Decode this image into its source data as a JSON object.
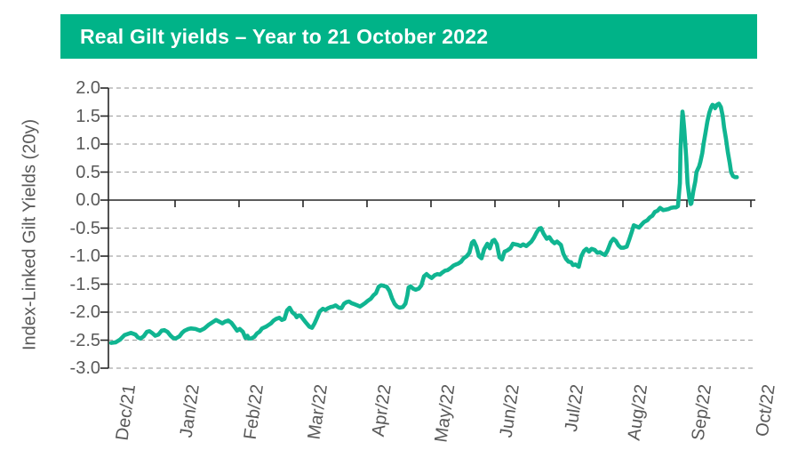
{
  "header": {
    "title": "Real Gilt yields – Year to 21 October 2022",
    "bg_color": "#00B388",
    "text_color": "#FFFFFF"
  },
  "chart_data": {
    "type": "line",
    "title": "Real Gilt yields – Year to 21 October 2022",
    "xlabel": "",
    "ylabel": "Index-Linked Gilt Yields (20y)",
    "legend_position": "none",
    "grid": "horizontal-dashed",
    "ylim": [
      -3.0,
      2.0
    ],
    "y_ticks": [
      2.0,
      1.5,
      1.0,
      0.5,
      0.0,
      -0.5,
      -1.0,
      -1.5,
      -2.0,
      -2.5,
      -3.0
    ],
    "y_tick_labels": [
      "2.0",
      "1.5",
      "1.0",
      "0.5",
      "0.0",
      "-0.5",
      "-1.0",
      "-1.5",
      "-2.0",
      "-2.5",
      "-3.0"
    ],
    "x_tick_labels": [
      "Dec/21",
      "Jan/22",
      "Feb/22",
      "Mar/22",
      "Apr/22",
      "May/22",
      "Jun/22",
      "Jul/22",
      "Aug/22",
      "Sep/22",
      "Oct/22"
    ],
    "x_tick_months": [
      0,
      1,
      2,
      3,
      4,
      5,
      6,
      7,
      8,
      9,
      10
    ],
    "colors": {
      "line": "#10B591",
      "grid": "#A6A6A6",
      "axis": "#262626",
      "tick_label": "#595959"
    },
    "series": [
      {
        "name": "Index-Linked Gilt Yields (20y)",
        "x_unit": "months since Dec/21",
        "y_unit": "percent yield",
        "points": [
          [
            0.0,
            -2.55
          ],
          [
            0.07,
            -2.54
          ],
          [
            0.14,
            -2.49
          ],
          [
            0.21,
            -2.41
          ],
          [
            0.31,
            -2.37
          ],
          [
            0.38,
            -2.4
          ],
          [
            0.42,
            -2.45
          ],
          [
            0.46,
            -2.47
          ],
          [
            0.51,
            -2.43
          ],
          [
            0.56,
            -2.35
          ],
          [
            0.6,
            -2.34
          ],
          [
            0.65,
            -2.38
          ],
          [
            0.69,
            -2.42
          ],
          [
            0.74,
            -2.4
          ],
          [
            0.79,
            -2.33
          ],
          [
            0.83,
            -2.32
          ],
          [
            0.88,
            -2.35
          ],
          [
            0.93,
            -2.42
          ],
          [
            0.97,
            -2.46
          ],
          [
            1.01,
            -2.47
          ],
          [
            1.07,
            -2.43
          ],
          [
            1.11,
            -2.37
          ],
          [
            1.15,
            -2.33
          ],
          [
            1.21,
            -2.3
          ],
          [
            1.25,
            -2.29
          ],
          [
            1.32,
            -2.3
          ],
          [
            1.39,
            -2.33
          ],
          [
            1.46,
            -2.29
          ],
          [
            1.53,
            -2.22
          ],
          [
            1.6,
            -2.17
          ],
          [
            1.64,
            -2.14
          ],
          [
            1.69,
            -2.17
          ],
          [
            1.74,
            -2.2
          ],
          [
            1.78,
            -2.17
          ],
          [
            1.83,
            -2.15
          ],
          [
            1.88,
            -2.19
          ],
          [
            1.92,
            -2.25
          ],
          [
            1.97,
            -2.33
          ],
          [
            2.01,
            -2.3
          ],
          [
            2.06,
            -2.35
          ],
          [
            2.1,
            -2.46
          ],
          [
            2.13,
            -2.42
          ],
          [
            2.15,
            -2.47
          ],
          [
            2.19,
            -2.47
          ],
          [
            2.24,
            -2.44
          ],
          [
            2.28,
            -2.38
          ],
          [
            2.32,
            -2.35
          ],
          [
            2.36,
            -2.29
          ],
          [
            2.42,
            -2.26
          ],
          [
            2.46,
            -2.23
          ],
          [
            2.5,
            -2.2
          ],
          [
            2.54,
            -2.15
          ],
          [
            2.58,
            -2.12
          ],
          [
            2.63,
            -2.1
          ],
          [
            2.67,
            -2.14
          ],
          [
            2.71,
            -2.12
          ],
          [
            2.75,
            -1.97
          ],
          [
            2.79,
            -1.92
          ],
          [
            2.83,
            -2.0
          ],
          [
            2.88,
            -2.05
          ],
          [
            2.9,
            -2.09
          ],
          [
            2.93,
            -2.06
          ],
          [
            2.96,
            -2.06
          ],
          [
            3.0,
            -2.12
          ],
          [
            3.04,
            -2.18
          ],
          [
            3.1,
            -2.26
          ],
          [
            3.14,
            -2.28
          ],
          [
            3.18,
            -2.2
          ],
          [
            3.22,
            -2.1
          ],
          [
            3.26,
            -1.99
          ],
          [
            3.31,
            -1.94
          ],
          [
            3.35,
            -1.96
          ],
          [
            3.39,
            -1.93
          ],
          [
            3.43,
            -1.91
          ],
          [
            3.47,
            -1.9
          ],
          [
            3.51,
            -1.88
          ],
          [
            3.56,
            -1.92
          ],
          [
            3.6,
            -1.93
          ],
          [
            3.64,
            -1.85
          ],
          [
            3.68,
            -1.82
          ],
          [
            3.72,
            -1.81
          ],
          [
            3.76,
            -1.84
          ],
          [
            3.81,
            -1.86
          ],
          [
            3.85,
            -1.88
          ],
          [
            3.89,
            -1.9
          ],
          [
            3.93,
            -1.87
          ],
          [
            3.97,
            -1.84
          ],
          [
            4.01,
            -1.8
          ],
          [
            4.06,
            -1.76
          ],
          [
            4.1,
            -1.7
          ],
          [
            4.14,
            -1.66
          ],
          [
            4.18,
            -1.55
          ],
          [
            4.22,
            -1.52
          ],
          [
            4.26,
            -1.53
          ],
          [
            4.31,
            -1.55
          ],
          [
            4.35,
            -1.62
          ],
          [
            4.39,
            -1.75
          ],
          [
            4.43,
            -1.85
          ],
          [
            4.47,
            -1.9
          ],
          [
            4.51,
            -1.92
          ],
          [
            4.56,
            -1.91
          ],
          [
            4.6,
            -1.85
          ],
          [
            4.63,
            -1.7
          ],
          [
            4.65,
            -1.56
          ],
          [
            4.68,
            -1.54
          ],
          [
            4.72,
            -1.58
          ],
          [
            4.76,
            -1.6
          ],
          [
            4.81,
            -1.58
          ],
          [
            4.85,
            -1.52
          ],
          [
            4.89,
            -1.36
          ],
          [
            4.93,
            -1.32
          ],
          [
            4.97,
            -1.36
          ],
          [
            5.01,
            -1.39
          ],
          [
            5.06,
            -1.34
          ],
          [
            5.1,
            -1.32
          ],
          [
            5.14,
            -1.33
          ],
          [
            5.18,
            -1.29
          ],
          [
            5.22,
            -1.26
          ],
          [
            5.26,
            -1.25
          ],
          [
            5.31,
            -1.21
          ],
          [
            5.35,
            -1.17
          ],
          [
            5.39,
            -1.15
          ],
          [
            5.43,
            -1.13
          ],
          [
            5.47,
            -1.1
          ],
          [
            5.51,
            -1.04
          ],
          [
            5.56,
            -1.0
          ],
          [
            5.6,
            -0.94
          ],
          [
            5.64,
            -0.76
          ],
          [
            5.67,
            -0.73
          ],
          [
            5.71,
            -0.83
          ],
          [
            5.75,
            -1.0
          ],
          [
            5.79,
            -1.04
          ],
          [
            5.83,
            -0.88
          ],
          [
            5.88,
            -0.78
          ],
          [
            5.92,
            -0.86
          ],
          [
            5.96,
            -0.73
          ],
          [
            5.99,
            -0.71
          ],
          [
            6.03,
            -0.79
          ],
          [
            6.07,
            -1.02
          ],
          [
            6.11,
            -1.06
          ],
          [
            6.15,
            -0.92
          ],
          [
            6.19,
            -0.9
          ],
          [
            6.24,
            -0.86
          ],
          [
            6.28,
            -0.78
          ],
          [
            6.32,
            -0.79
          ],
          [
            6.36,
            -0.8
          ],
          [
            6.4,
            -0.82
          ],
          [
            6.44,
            -0.79
          ],
          [
            6.49,
            -0.82
          ],
          [
            6.53,
            -0.78
          ],
          [
            6.57,
            -0.74
          ],
          [
            6.61,
            -0.67
          ],
          [
            6.65,
            -0.58
          ],
          [
            6.69,
            -0.51
          ],
          [
            6.72,
            -0.5
          ],
          [
            6.76,
            -0.6
          ],
          [
            6.81,
            -0.69
          ],
          [
            6.85,
            -0.66
          ],
          [
            6.89,
            -0.73
          ],
          [
            6.93,
            -0.77
          ],
          [
            6.97,
            -0.74
          ],
          [
            7.03,
            -0.8
          ],
          [
            7.07,
            -0.96
          ],
          [
            7.11,
            -1.05
          ],
          [
            7.15,
            -1.1
          ],
          [
            7.19,
            -1.11
          ],
          [
            7.22,
            -1.16
          ],
          [
            7.26,
            -1.15
          ],
          [
            7.31,
            -1.19
          ],
          [
            7.35,
            -1.0
          ],
          [
            7.39,
            -0.91
          ],
          [
            7.43,
            -0.87
          ],
          [
            7.47,
            -0.92
          ],
          [
            7.51,
            -0.87
          ],
          [
            7.56,
            -0.89
          ],
          [
            7.6,
            -0.94
          ],
          [
            7.64,
            -0.93
          ],
          [
            7.68,
            -0.96
          ],
          [
            7.72,
            -0.98
          ],
          [
            7.76,
            -0.9
          ],
          [
            7.81,
            -0.75
          ],
          [
            7.85,
            -0.69
          ],
          [
            7.89,
            -0.73
          ],
          [
            7.93,
            -0.81
          ],
          [
            7.97,
            -0.85
          ],
          [
            8.01,
            -0.85
          ],
          [
            8.06,
            -0.83
          ],
          [
            8.1,
            -0.7
          ],
          [
            8.14,
            -0.56
          ],
          [
            8.17,
            -0.45
          ],
          [
            8.21,
            -0.47
          ],
          [
            8.25,
            -0.49
          ],
          [
            8.29,
            -0.44
          ],
          [
            8.33,
            -0.39
          ],
          [
            8.38,
            -0.36
          ],
          [
            8.42,
            -0.31
          ],
          [
            8.46,
            -0.28
          ],
          [
            8.5,
            -0.21
          ],
          [
            8.54,
            -0.19
          ],
          [
            8.58,
            -0.14
          ],
          [
            8.63,
            -0.18
          ],
          [
            8.67,
            -0.17
          ],
          [
            8.71,
            -0.16
          ],
          [
            8.75,
            -0.14
          ],
          [
            8.79,
            -0.13
          ],
          [
            8.83,
            -0.13
          ],
          [
            8.86,
            -0.11
          ],
          [
            8.89,
            0.3
          ],
          [
            8.9,
            0.9
          ],
          [
            8.92,
            1.35
          ],
          [
            8.93,
            1.58
          ],
          [
            8.94,
            1.5
          ],
          [
            8.96,
            1.25
          ],
          [
            8.99,
            0.74
          ],
          [
            9.01,
            0.3
          ],
          [
            9.04,
            0.02
          ],
          [
            9.06,
            -0.07
          ],
          [
            9.07,
            -0.06
          ],
          [
            9.1,
            0.16
          ],
          [
            9.13,
            0.33
          ],
          [
            9.15,
            0.5
          ],
          [
            9.17,
            0.55
          ],
          [
            9.19,
            0.6
          ],
          [
            9.21,
            0.68
          ],
          [
            9.24,
            0.84
          ],
          [
            9.26,
            1.0
          ],
          [
            9.29,
            1.2
          ],
          [
            9.32,
            1.4
          ],
          [
            9.35,
            1.56
          ],
          [
            9.38,
            1.66
          ],
          [
            9.4,
            1.7
          ],
          [
            9.43,
            1.68
          ],
          [
            9.44,
            1.64
          ],
          [
            9.47,
            1.7
          ],
          [
            9.5,
            1.72
          ],
          [
            9.53,
            1.66
          ],
          [
            9.56,
            1.5
          ],
          [
            9.58,
            1.3
          ],
          [
            9.61,
            1.1
          ],
          [
            9.64,
            0.85
          ],
          [
            9.67,
            0.66
          ],
          [
            9.69,
            0.5
          ],
          [
            9.72,
            0.43
          ],
          [
            9.75,
            0.41
          ],
          [
            9.78,
            0.41
          ]
        ]
      }
    ]
  }
}
